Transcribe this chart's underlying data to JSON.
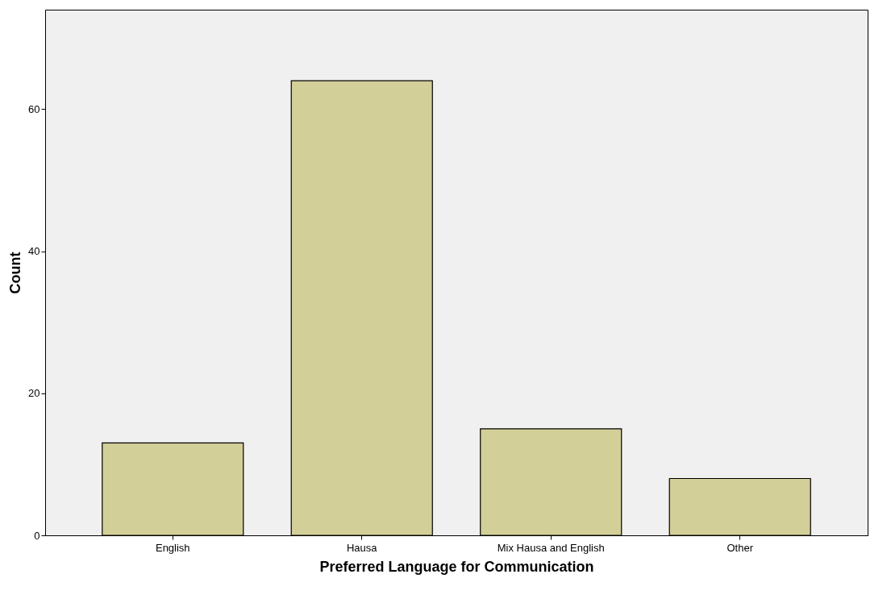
{
  "chart_data": {
    "type": "bar",
    "xlabel": "Preferred Language for Communication",
    "ylabel": "Count",
    "categories": [
      "English",
      "Hausa",
      "Mix Hausa and English",
      "Other"
    ],
    "values": [
      13,
      64,
      15,
      8
    ],
    "color": "#d3cf98",
    "ylim": [
      0,
      74
    ],
    "yticks": [
      0,
      20,
      40,
      60
    ],
    "grid": false
  }
}
